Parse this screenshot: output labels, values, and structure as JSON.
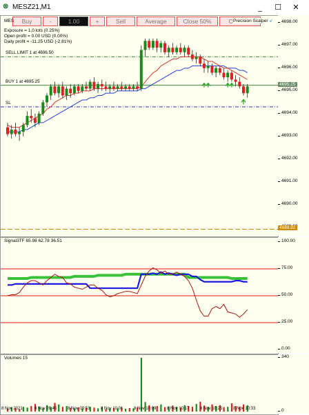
{
  "window": {
    "title": "MESZ21,M1",
    "minimize": "_",
    "maximize": "☐",
    "close": "✕"
  },
  "toolbar": {
    "buy": "Buy",
    "minus": "-",
    "lot_value": "1.00",
    "plus": "+",
    "sell": "Sell",
    "average": "Average",
    "close50": "Close 50%",
    "close_all": "Close All"
  },
  "tool_name": "Precision Scalper",
  "chart_symbol_short": "MES",
  "info": {
    "exposure": "Exposure = 1.0 lots (0.25%)",
    "open_profit": "Open profit = 0.00 USD (0.00%)",
    "daily_profit": "Daily profit = -11.25 USD (-2.81%)"
  },
  "labels": {
    "sell_limit": "SELL LIMIT 1 at 4696.50",
    "buy": "BUY 1 at 4695.25",
    "sl": "SL"
  },
  "price_axis": {
    "ticks": [
      "4698.00",
      "4697.00",
      "4696.00",
      "4695.00",
      "4694.00",
      "4693.00",
      "4692.00",
      "4691.00",
      "4690.00",
      "4689.00"
    ],
    "current_price": "4695.25",
    "sl_price": "4688.92"
  },
  "signal": {
    "title": "Signal3TF 65.98 62.78 36.51",
    "ticks": [
      "100.00",
      "75.00",
      "50.00",
      "25.00",
      "0.00"
    ]
  },
  "volume": {
    "title": "Volumes 15",
    "ticks": [
      "340",
      "0"
    ]
  },
  "time_axis": [
    "8 Nov 2021",
    "8 Nov 09:45",
    "8 Nov 09:53",
    "8 Nov 10:01",
    "8 Nov 10:09",
    "8 Nov 10:17",
    "8 Nov 10:25",
    "8 Nov 10:33"
  ],
  "colors": {
    "bull": "#1a8a1a",
    "bear": "#e02020",
    "ma_fast": "#e03030",
    "ma_slow": "#2040e0",
    "sell_limit_line": "#3a8a3a",
    "buy_line": "#3a8a3a",
    "sl_line": "#3030c0",
    "sl_price_line": "#d08a00",
    "signal_green": "#3ac13a",
    "signal_blue": "#1a1ae0",
    "signal_red": "#b01010",
    "level_red": "#e01010"
  },
  "chart_data": [
    {
      "type": "candlestick",
      "title": "MESZ21,M1",
      "ylim": [
        4688.6,
        4698.3
      ],
      "candles": [
        [
          4693.4,
          4693.6,
          4693.0,
          4693.1
        ],
        [
          4693.1,
          4693.5,
          4692.9,
          4693.3
        ],
        [
          4693.3,
          4693.6,
          4693.0,
          4693.1
        ],
        [
          4693.1,
          4693.4,
          4692.8,
          4693.2
        ],
        [
          4693.2,
          4693.6,
          4693.0,
          4693.5
        ],
        [
          4693.5,
          4694.1,
          4693.4,
          4693.9
        ],
        [
          4693.9,
          4694.2,
          4693.6,
          4693.8
        ],
        [
          4693.8,
          4694.0,
          4693.4,
          4693.6
        ],
        [
          4693.6,
          4694.1,
          4693.5,
          4694.0
        ],
        [
          4694.0,
          4694.6,
          4693.9,
          4694.5
        ],
        [
          4694.5,
          4694.9,
          4694.3,
          4694.8
        ],
        [
          4694.8,
          4695.3,
          4694.6,
          4695.2
        ],
        [
          4695.2,
          4695.4,
          4694.8,
          4694.9
        ],
        [
          4694.9,
          4695.3,
          4694.7,
          4695.2
        ],
        [
          4695.2,
          4695.4,
          4694.7,
          4694.8
        ],
        [
          4694.8,
          4695.2,
          4694.6,
          4695.1
        ],
        [
          4695.1,
          4695.3,
          4694.7,
          4694.9
        ],
        [
          4694.9,
          4695.3,
          4694.8,
          4695.2
        ],
        [
          4695.2,
          4695.3,
          4694.9,
          4695.0
        ],
        [
          4695.0,
          4695.3,
          4694.9,
          4695.2
        ],
        [
          4695.2,
          4695.4,
          4695.0,
          4695.1
        ],
        [
          4695.1,
          4695.5,
          4695.0,
          4695.4
        ],
        [
          4695.4,
          4695.6,
          4695.0,
          4695.1
        ],
        [
          4695.1,
          4695.4,
          4694.9,
          4695.3
        ],
        [
          4695.3,
          4695.5,
          4695.0,
          4695.2
        ],
        [
          4695.2,
          4695.4,
          4695.0,
          4695.1
        ],
        [
          4695.1,
          4695.3,
          4694.9,
          4695.2
        ],
        [
          4695.2,
          4695.4,
          4695.0,
          4695.1
        ],
        [
          4695.1,
          4695.3,
          4695.0,
          4695.2
        ],
        [
          4695.2,
          4695.4,
          4695.0,
          4695.1
        ],
        [
          4695.1,
          4695.3,
          4695.0,
          4695.2
        ],
        [
          4695.2,
          4695.3,
          4695.0,
          4695.1
        ],
        [
          4695.1,
          4695.3,
          4695.0,
          4695.2
        ],
        [
          4695.2,
          4695.4,
          4695.0,
          4695.1
        ],
        [
          4695.1,
          4697.0,
          4695.0,
          4696.8
        ],
        [
          4696.8,
          4697.3,
          4696.5,
          4697.2
        ],
        [
          4697.2,
          4697.3,
          4696.8,
          4696.9
        ],
        [
          4696.9,
          4697.3,
          4696.8,
          4697.2
        ],
        [
          4697.2,
          4697.3,
          4696.7,
          4696.9
        ],
        [
          4696.9,
          4697.2,
          4696.7,
          4697.1
        ],
        [
          4697.1,
          4697.2,
          4696.6,
          4696.7
        ],
        [
          4696.7,
          4697.0,
          4696.5,
          4696.9
        ],
        [
          4696.9,
          4697.1,
          4696.6,
          4696.7
        ],
        [
          4696.7,
          4697.0,
          4696.6,
          4696.9
        ],
        [
          4696.9,
          4697.1,
          4696.6,
          4696.7
        ],
        [
          4696.7,
          4697.0,
          4696.5,
          4696.9
        ],
        [
          4696.9,
          4697.0,
          4696.5,
          4696.6
        ],
        [
          4696.6,
          4696.8,
          4696.3,
          4696.4
        ],
        [
          4696.4,
          4696.7,
          4696.2,
          4696.5
        ],
        [
          4696.5,
          4696.6,
          4696.1,
          4696.2
        ],
        [
          4696.2,
          4696.4,
          4695.8,
          4696.0
        ],
        [
          4696.0,
          4696.3,
          4695.8,
          4696.1
        ],
        [
          4696.1,
          4696.2,
          4695.7,
          4695.8
        ],
        [
          4695.8,
          4696.1,
          4695.6,
          4696.0
        ],
        [
          4696.0,
          4696.1,
          4695.7,
          4695.8
        ],
        [
          4695.8,
          4696.0,
          4695.5,
          4695.6
        ],
        [
          4695.6,
          4695.9,
          4695.4,
          4695.8
        ],
        [
          4695.8,
          4695.9,
          4695.4,
          4695.5
        ],
        [
          4695.5,
          4695.7,
          4695.2,
          4695.4
        ],
        [
          4695.4,
          4695.6,
          4695.1,
          4695.2
        ],
        [
          4695.2,
          4695.3,
          4694.8,
          4694.9
        ],
        [
          4694.9,
          4695.3,
          4694.7,
          4695.2
        ]
      ],
      "ma_fast": [
        4693.5,
        4693.4,
        4693.4,
        4693.4,
        4693.5,
        4693.6,
        4693.7,
        4693.8,
        4693.9,
        4694.0,
        4694.2,
        4694.3,
        4694.5,
        4694.6,
        4694.7,
        4694.8,
        4694.8,
        4694.9,
        4694.9,
        4695.0,
        4695.0,
        4695.0,
        4695.1,
        4695.1,
        4695.1,
        4695.1,
        4695.1,
        4695.1,
        4695.1,
        4695.1,
        4695.1,
        4695.1,
        4695.1,
        4695.1,
        4695.2,
        4695.4,
        4695.6,
        4695.8,
        4695.9,
        4696.1,
        4696.2,
        4696.3,
        4696.4,
        4696.4,
        4696.5,
        4696.5,
        4696.5,
        4696.5,
        4696.5,
        4696.5,
        4696.4,
        4696.3,
        4696.3,
        4696.2,
        4696.1,
        4696.0,
        4696.0,
        4695.9,
        4695.8,
        4695.7,
        4695.6,
        4695.5
      ],
      "ma_slow": [
        4693.2,
        4693.2,
        4693.2,
        4693.2,
        4693.3,
        4693.3,
        4693.4,
        4693.5,
        4693.6,
        4693.6,
        4693.7,
        4693.8,
        4693.9,
        4694.0,
        4694.1,
        4694.2,
        4694.3,
        4694.4,
        4694.5,
        4694.6,
        4694.6,
        4694.7,
        4694.7,
        4694.8,
        4694.8,
        4694.9,
        4694.9,
        4694.9,
        4695.0,
        4695.0,
        4695.0,
        4695.0,
        4695.0,
        4695.0,
        4695.1,
        4695.1,
        4695.2,
        4695.3,
        4695.4,
        4695.5,
        4695.6,
        4695.7,
        4695.8,
        4695.9,
        4695.9,
        4696.0,
        4696.0,
        4696.1,
        4696.1,
        4696.1,
        4696.1,
        4696.1,
        4696.1,
        4696.1,
        4696.1,
        4696.1,
        4696.0,
        4696.0,
        4696.0,
        4695.9,
        4695.9,
        4695.8
      ],
      "levels": {
        "sell_limit": 4696.5,
        "buy": 4695.25,
        "sl": 4694.3,
        "sl_order": 4688.92
      }
    },
    {
      "type": "line",
      "title": "Signal3TF 65.98 62.78 36.51",
      "ylim": [
        0,
        100
      ],
      "levels": [
        75,
        50,
        25
      ],
      "series": [
        {
          "name": "green",
          "values": [
            66,
            66,
            66,
            66,
            66,
            66,
            67,
            67,
            67,
            67,
            67,
            67,
            67,
            67,
            67,
            67,
            67,
            68,
            68,
            68,
            68,
            68,
            68,
            69,
            69,
            69,
            69,
            69,
            69,
            69,
            70,
            70,
            70,
            70,
            70,
            70,
            70,
            70,
            70,
            70,
            70,
            70,
            70,
            70,
            70,
            70,
            67,
            67,
            67,
            67,
            67,
            67,
            67,
            67,
            67,
            67,
            67,
            66,
            66,
            66,
            66,
            66
          ]
        },
        {
          "name": "blue",
          "values": [
            60,
            60,
            61,
            61,
            61,
            61,
            61,
            61,
            61,
            61,
            61,
            61,
            61,
            61,
            61,
            61,
            61,
            61,
            61,
            61,
            61,
            57,
            57,
            57,
            57,
            57,
            57,
            57,
            57,
            57,
            57,
            57,
            57,
            57,
            70,
            70,
            70,
            71,
            70,
            72,
            70,
            71,
            70,
            69,
            70,
            70,
            70,
            68,
            68,
            65,
            63,
            63,
            63,
            63,
            63,
            63,
            63,
            63,
            64,
            64,
            63,
            63
          ]
        },
        {
          "name": "red",
          "values": [
            50,
            51,
            51,
            53,
            58,
            62,
            64,
            64,
            62,
            60,
            64,
            67,
            70,
            68,
            67,
            62,
            61,
            58,
            57,
            56,
            58,
            60,
            60,
            57,
            55,
            51,
            49,
            50,
            52,
            53,
            54,
            54,
            53,
            52,
            60,
            68,
            73,
            76,
            74,
            71,
            73,
            70,
            70,
            72,
            70,
            68,
            64,
            57,
            46,
            36,
            31,
            31,
            38,
            40,
            38,
            42,
            35,
            34,
            33,
            30,
            33,
            37
          ]
        }
      ]
    },
    {
      "type": "bar",
      "title": "Volumes 15",
      "ylim": [
        0,
        340
      ],
      "values": [
        18,
        28,
        22,
        15,
        30,
        25,
        35,
        48,
        32,
        20,
        40,
        28,
        55,
        45,
        30,
        35,
        24,
        20,
        26,
        18,
        22,
        30,
        25,
        20,
        28,
        15,
        18,
        22,
        20,
        26,
        18,
        22,
        20,
        25,
        340,
        60,
        40,
        30,
        35,
        45,
        28,
        32,
        38,
        30,
        25,
        40,
        35,
        30,
        48,
        62,
        38,
        30,
        45,
        35,
        40,
        28,
        30,
        52,
        35,
        30,
        45,
        40
      ],
      "bear_indices": [
        0,
        2,
        3,
        6,
        7,
        12,
        14,
        16,
        18,
        20,
        22,
        25,
        27,
        29,
        31,
        33,
        36,
        38,
        40,
        42,
        44,
        46,
        47,
        49,
        50,
        52,
        54,
        55,
        57,
        58,
        59,
        60
      ]
    }
  ]
}
